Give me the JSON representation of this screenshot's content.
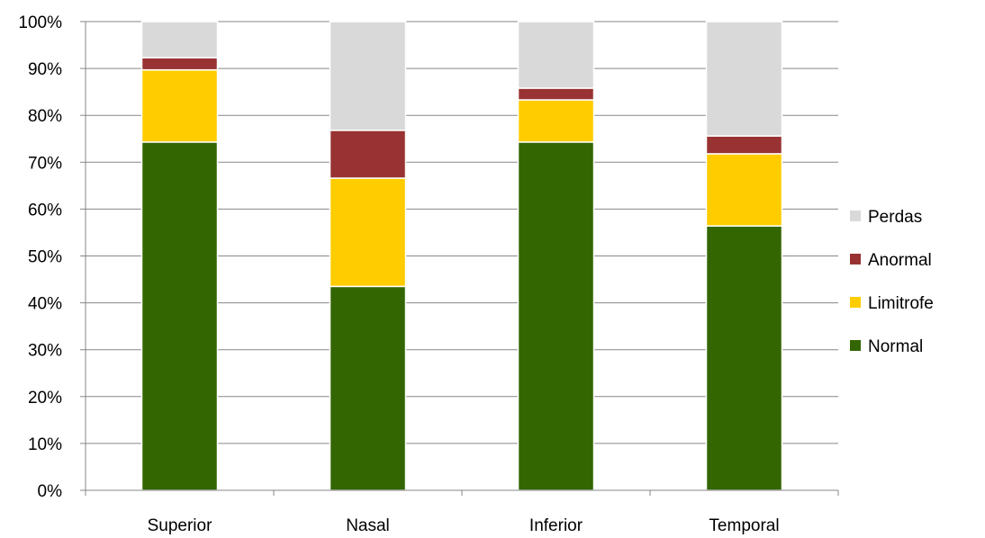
{
  "chart_data": {
    "type": "bar",
    "stacked": true,
    "percent": true,
    "categories": [
      "Superior",
      "Nasal",
      "Inferior",
      "Temporal"
    ],
    "series": [
      {
        "name": "Normal",
        "color": "#336600",
        "values": [
          74.3,
          43.5,
          74.3,
          56.4
        ]
      },
      {
        "name": "Limitrofe",
        "color": "#FFCC00",
        "values": [
          15.4,
          23.1,
          9.0,
          15.4
        ]
      },
      {
        "name": "Anormal",
        "color": "#993333",
        "values": [
          2.6,
          10.2,
          2.5,
          3.8
        ]
      },
      {
        "name": "Perdas",
        "color": "#D9D9D9",
        "values": [
          7.7,
          23.2,
          14.2,
          24.4
        ]
      }
    ],
    "ylim": [
      0,
      100
    ],
    "yticks": [
      "0%",
      "10%",
      "20%",
      "30%",
      "40%",
      "50%",
      "60%",
      "70%",
      "80%",
      "90%",
      "100%"
    ],
    "grid": true,
    "legend_position": "right",
    "legend_order": [
      "Perdas",
      "Anormal",
      "Limitrofe",
      "Normal"
    ]
  }
}
